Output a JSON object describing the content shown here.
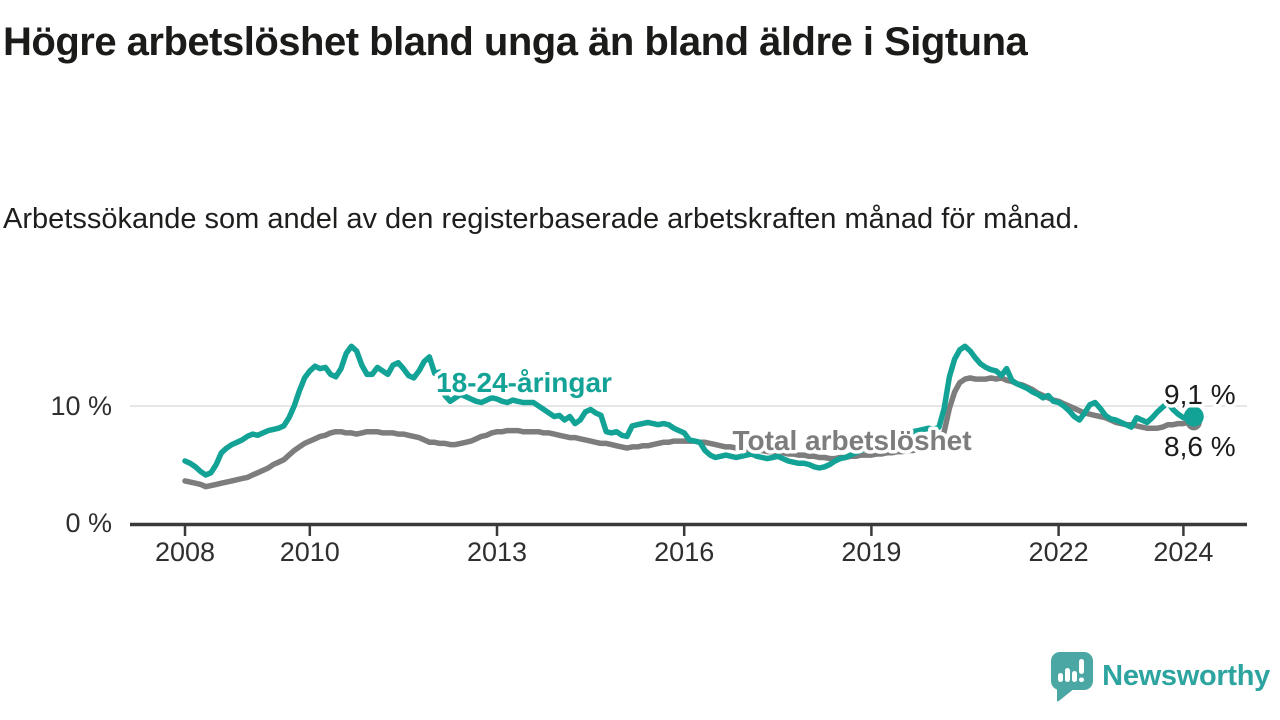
{
  "header": {
    "title": "Högre arbetslöshet bland unga än bland äldre i Sigtuna",
    "subtitle": "Arbetssökande som andel av den registerbaserade arbetskraften månad för månad."
  },
  "chart_data": {
    "type": "line",
    "unit": "%",
    "x_start": "2008-01",
    "x_end": "2024-03",
    "grid": "horizontal-10-only",
    "legend_position": "inline-labels-on-lines",
    "ylim": [
      0,
      16
    ],
    "yticks": [
      {
        "value": 0,
        "label": "0 %"
      },
      {
        "value": 10,
        "label": "10 %"
      }
    ],
    "xticks": [
      2008,
      2010,
      2013,
      2016,
      2019,
      2022,
      2024
    ],
    "colors": {
      "young": "#12a296",
      "total": "#7d7d7d"
    },
    "series": [
      {
        "name": "18-24-åringar",
        "color": "#12a296",
        "end_label": "9,1 %",
        "values": [
          5.3,
          5.1,
          4.8,
          4.4,
          4.1,
          4.3,
          5.0,
          6.0,
          6.4,
          6.7,
          6.9,
          7.1,
          7.4,
          7.6,
          7.5,
          7.7,
          7.9,
          8.0,
          8.1,
          8.3,
          9.0,
          10.0,
          11.3,
          12.4,
          13.0,
          13.4,
          13.2,
          13.3,
          12.7,
          12.5,
          13.2,
          14.5,
          15.1,
          14.7,
          13.5,
          12.7,
          12.7,
          13.3,
          13.0,
          12.7,
          13.5,
          13.7,
          13.2,
          12.6,
          12.4,
          13.0,
          13.8,
          14.2,
          12.8,
          12.9,
          10.9,
          10.4,
          10.7,
          11.0,
          10.8,
          10.6,
          10.4,
          10.3,
          10.5,
          10.7,
          10.6,
          10.4,
          10.3,
          10.5,
          10.4,
          10.3,
          10.3,
          10.3,
          10.0,
          9.7,
          9.4,
          9.1,
          9.2,
          8.8,
          9.1,
          8.5,
          8.8,
          9.5,
          9.7,
          9.4,
          9.2,
          7.8,
          7.7,
          7.8,
          7.5,
          7.4,
          8.3,
          8.4,
          8.5,
          8.6,
          8.5,
          8.4,
          8.5,
          8.4,
          8.1,
          7.9,
          7.7,
          7.1,
          7.0,
          6.9,
          6.2,
          5.8,
          5.6,
          5.7,
          5.8,
          5.7,
          5.6,
          5.7,
          5.8,
          5.9,
          5.7,
          5.6,
          5.5,
          5.6,
          5.7,
          5.5,
          5.3,
          5.2,
          5.1,
          5.1,
          5.0,
          4.8,
          4.7,
          4.8,
          5.0,
          5.3,
          5.5,
          5.6,
          5.8,
          6.0,
          6.2,
          6.4,
          6.5,
          6.7,
          6.9,
          7.0,
          7.2,
          7.4,
          7.5,
          7.7,
          7.8,
          7.9,
          8.0,
          8.1,
          8.0,
          8.2,
          9.8,
          12.5,
          14.0,
          14.8,
          15.1,
          14.7,
          14.1,
          13.6,
          13.3,
          13.1,
          13.0,
          12.6,
          13.2,
          12.2,
          11.9,
          11.7,
          11.5,
          11.2,
          11.0,
          10.7,
          10.9,
          10.4,
          10.3,
          10.0,
          9.6,
          9.1,
          8.8,
          9.4,
          10.1,
          10.3,
          9.8,
          9.2,
          8.9,
          8.8,
          8.6,
          8.4,
          8.2,
          9.0,
          8.8,
          8.6,
          9.0,
          9.5,
          9.9,
          10.3,
          9.7,
          9.3,
          9.0,
          9.0,
          9.1
        ]
      },
      {
        "name": "Total arbetslöshet",
        "color": "#7d7d7d",
        "end_label": "8,6 %",
        "values": [
          3.6,
          3.5,
          3.4,
          3.3,
          3.1,
          3.2,
          3.3,
          3.4,
          3.5,
          3.6,
          3.7,
          3.8,
          3.9,
          4.1,
          4.3,
          4.5,
          4.7,
          5.0,
          5.2,
          5.4,
          5.8,
          6.2,
          6.5,
          6.8,
          7.0,
          7.2,
          7.4,
          7.5,
          7.7,
          7.8,
          7.8,
          7.7,
          7.7,
          7.6,
          7.7,
          7.8,
          7.8,
          7.8,
          7.7,
          7.7,
          7.7,
          7.6,
          7.6,
          7.5,
          7.4,
          7.3,
          7.1,
          6.9,
          6.9,
          6.8,
          6.8,
          6.7,
          6.7,
          6.8,
          6.9,
          7.0,
          7.2,
          7.4,
          7.5,
          7.7,
          7.8,
          7.8,
          7.9,
          7.9,
          7.9,
          7.8,
          7.8,
          7.8,
          7.8,
          7.7,
          7.7,
          7.6,
          7.5,
          7.4,
          7.3,
          7.3,
          7.2,
          7.1,
          7.0,
          6.9,
          6.8,
          6.8,
          6.7,
          6.6,
          6.5,
          6.4,
          6.5,
          6.5,
          6.6,
          6.6,
          6.7,
          6.8,
          6.9,
          6.9,
          7.0,
          7.0,
          7.0,
          7.0,
          7.0,
          6.9,
          6.9,
          6.8,
          6.7,
          6.6,
          6.5,
          6.5,
          6.4,
          6.4,
          6.3,
          6.3,
          6.2,
          6.2,
          6.1,
          6.1,
          6.0,
          6.0,
          5.9,
          5.9,
          5.8,
          5.8,
          5.7,
          5.7,
          5.6,
          5.6,
          5.5,
          5.5,
          5.6,
          5.6,
          5.7,
          5.7,
          5.8,
          5.8,
          5.8,
          5.9,
          5.9,
          6.0,
          6.0,
          6.1,
          6.1,
          6.2,
          6.2,
          6.3,
          6.4,
          6.5,
          6.6,
          6.8,
          7.8,
          9.8,
          11.2,
          12.0,
          12.3,
          12.4,
          12.3,
          12.3,
          12.3,
          12.4,
          12.3,
          12.4,
          12.2,
          12.1,
          11.9,
          11.8,
          11.6,
          11.4,
          11.1,
          10.9,
          10.7,
          10.5,
          10.4,
          10.2,
          10.0,
          9.8,
          9.6,
          9.4,
          9.3,
          9.2,
          9.1,
          9.0,
          8.8,
          8.6,
          8.5,
          8.4,
          8.4,
          8.3,
          8.2,
          8.1,
          8.1,
          8.1,
          8.2,
          8.4,
          8.4,
          8.5,
          8.5,
          8.6,
          8.6
        ]
      }
    ]
  },
  "footer": {
    "brand": "Newsworthy"
  }
}
